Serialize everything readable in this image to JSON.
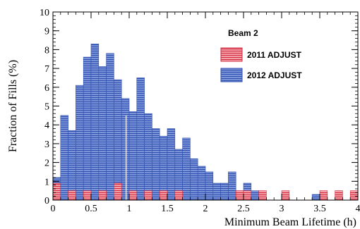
{
  "chart_data": {
    "type": "bar",
    "title": "",
    "xlabel": "Minimum Beam Lifetime (h)",
    "ylabel": "Fraction of Fills (%)",
    "xlim": [
      0,
      4
    ],
    "ylim": [
      0,
      10
    ],
    "bin_width": 0.1,
    "x_ticks": [
      0,
      0.5,
      1,
      1.5,
      2,
      2.5,
      3,
      3.5,
      4
    ],
    "x_tick_labels": [
      "0",
      "0.5",
      "1",
      "1.5",
      "2",
      "2.5",
      "3",
      "3.5",
      "4"
    ],
    "y_ticks": [
      0,
      1,
      2,
      3,
      4,
      5,
      6,
      7,
      8,
      9,
      10
    ],
    "y_tick_labels": [
      "0",
      "1",
      "2",
      "3",
      "4",
      "5",
      "6",
      "7",
      "8",
      "9",
      "10"
    ],
    "legend": {
      "header": "Beam 2",
      "placement": "top-right"
    },
    "marker_line": {
      "x": 0.96
    },
    "series": [
      {
        "name": "2012 ADJUST",
        "color": "#2f4fb0",
        "fill": "#6f88d0",
        "bin_starts": [
          0,
          0.1,
          0.2,
          0.3,
          0.4,
          0.5,
          0.6,
          0.7,
          0.8,
          0.9,
          1.0,
          1.1,
          1.2,
          1.3,
          1.4,
          1.5,
          1.6,
          1.7,
          1.8,
          1.9,
          2.0,
          2.1,
          2.2,
          2.3,
          2.4,
          2.5,
          2.6,
          2.7,
          2.8,
          2.9,
          3.0,
          3.1,
          3.2,
          3.3,
          3.4,
          3.5,
          3.6,
          3.7,
          3.8,
          3.9
        ],
        "values": [
          1.2,
          4.5,
          3.7,
          6.1,
          7.6,
          8.3,
          7.1,
          7.8,
          6.4,
          5.4,
          4.7,
          6.5,
          4.6,
          3.8,
          3.4,
          3.8,
          2.7,
          3.3,
          2.2,
          1.8,
          1.5,
          0.9,
          0.9,
          1.5,
          0.5,
          0.9,
          0.5,
          0.0,
          0.0,
          0.0,
          0.3,
          0.0,
          0.0,
          0.0,
          0.3,
          0.3,
          0.0,
          0.0,
          0.0,
          0.0
        ]
      },
      {
        "name": "2011 ADJUST",
        "color": "#d0283c",
        "fill": "#f08c96",
        "bin_starts": [
          0,
          0.1,
          0.2,
          0.3,
          0.4,
          0.5,
          0.6,
          0.7,
          0.8,
          0.9,
          1.0,
          1.1,
          1.2,
          1.3,
          1.4,
          1.5,
          1.6,
          1.7,
          1.8,
          1.9,
          2.0,
          2.1,
          2.2,
          2.3,
          2.4,
          2.5,
          2.6,
          2.7,
          2.8,
          2.9,
          3.0,
          3.1,
          3.2,
          3.3,
          3.4,
          3.5,
          3.6,
          3.7,
          3.8,
          3.9
        ],
        "values": [
          0.9,
          0.0,
          0.5,
          0.0,
          0.5,
          0.0,
          0.5,
          0.0,
          0.9,
          0.0,
          0.5,
          0.0,
          0.5,
          0.0,
          0.5,
          0.0,
          0.5,
          0.0,
          0.0,
          0.0,
          0.0,
          0.0,
          0.0,
          0.0,
          0.5,
          0.5,
          0.0,
          0.5,
          0.0,
          0.0,
          0.5,
          0.0,
          0.0,
          0.0,
          0.0,
          0.5,
          0.0,
          0.5,
          0.0,
          0.5
        ]
      }
    ]
  }
}
